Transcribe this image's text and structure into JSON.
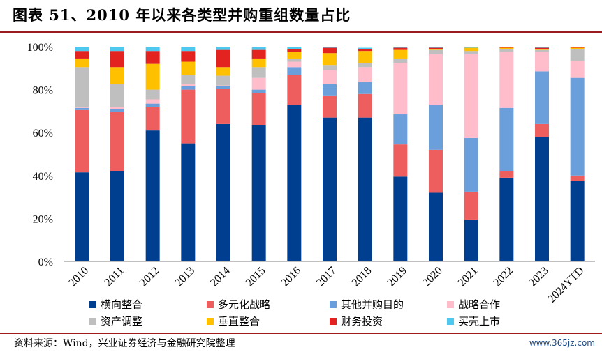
{
  "header": {
    "title": "图表 51、2010 年以来各类型并购重组数量占比"
  },
  "footer": {
    "source": "资料来源：Wind，兴业证券经济与金融研究院整理",
    "watermark": "www.365jz.com"
  },
  "chart_data": {
    "type": "bar",
    "stacked": true,
    "categories": [
      "2010",
      "2011",
      "2012",
      "2013",
      "2014",
      "2015",
      "2016",
      "2017",
      "2018",
      "2019",
      "2020",
      "2021",
      "2022",
      "2023",
      "2024YTD"
    ],
    "y_ticks": [
      "0%",
      "20%",
      "40%",
      "60%",
      "80%",
      "100%"
    ],
    "ylim": [
      0,
      100
    ],
    "legend_position": "bottom",
    "series": [
      {
        "name": "横向整合",
        "color": "#003f8f",
        "values": [
          41.5,
          42,
          61,
          55,
          64,
          63.5,
          73,
          67,
          67,
          39.5,
          32,
          19.5,
          39,
          58,
          37.5
        ]
      },
      {
        "name": "多元化战略",
        "color": "#ee5e5e",
        "values": [
          29,
          27.5,
          11,
          25,
          16.5,
          15,
          14,
          10,
          11,
          15,
          20,
          13,
          3,
          6,
          2.5
        ]
      },
      {
        "name": "其他并购目的",
        "color": "#6a9fdc",
        "values": [
          1,
          1.5,
          1.5,
          1.5,
          1,
          1.5,
          3.5,
          5.5,
          5.5,
          14,
          21,
          25,
          29.5,
          24.5,
          45.5
        ]
      },
      {
        "name": "战略合作",
        "color": "#ffbccb",
        "values": [
          0.5,
          1,
          2,
          1,
          0.5,
          5.5,
          2.5,
          6.5,
          7,
          24,
          23.5,
          39,
          26,
          9,
          8
        ]
      },
      {
        "name": "资产调整",
        "color": "#bfbfbf",
        "values": [
          18.5,
          10.5,
          4.5,
          4.5,
          4.5,
          5,
          1.5,
          2.5,
          2,
          2,
          2,
          1.5,
          1.5,
          1,
          5.5
        ]
      },
      {
        "name": "垂直整合",
        "color": "#ffc000",
        "values": [
          4,
          8,
          12,
          6,
          4,
          4,
          3,
          5.5,
          5.5,
          4,
          0.5,
          1.5,
          0.5,
          0.5,
          0.5
        ]
      },
      {
        "name": "财务投资",
        "color": "#e3231f",
        "values": [
          3.5,
          7.5,
          6,
          5,
          8,
          4,
          1.5,
          2.5,
          1,
          1,
          0.5,
          0,
          0.5,
          0.5,
          0.5
        ]
      },
      {
        "name": "买壳上市",
        "color": "#4ec8ef",
        "values": [
          2,
          2,
          2,
          2,
          1.5,
          1.5,
          1,
          0.5,
          0.5,
          0.5,
          0.5,
          0.5,
          0,
          0.5,
          0
        ]
      }
    ]
  }
}
